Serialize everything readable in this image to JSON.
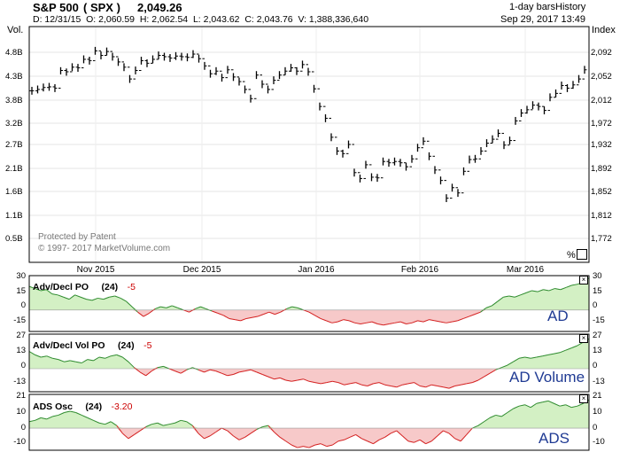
{
  "header": {
    "title": "S&P 500",
    "symbol": "( SPX )",
    "last": "2,049.26",
    "ohlcv": "D: 12/31/15  O: 2,060.59  H: 2,062.54  L: 2,043.62  C: 2,043.76  V: 1,388,336,640",
    "bars": "1-day bars",
    "history": "History",
    "datetime": "Sep 29, 2017 13:49",
    "vol_label": "Vol.",
    "index_label": "Index"
  },
  "watermark": {
    "line1": "Protected by Patent",
    "line2": "© 1997- 2017 MarketVolume.com"
  },
  "pct_label": "%",
  "chart_data": [
    {
      "type": "ohlc",
      "volume_ticks": [
        "4.8B",
        "4.3B",
        "3.8B",
        "3.2B",
        "2.7B",
        "2.1B",
        "1.6B",
        "1.1B",
        "0.5B"
      ],
      "price_ticks": [
        "2,092",
        "2,052",
        "2,012",
        "1,972",
        "1,932",
        "1,892",
        "1,852",
        "1,812",
        "1,772"
      ],
      "ylim": [
        1752,
        2112
      ],
      "x_labels": [
        "Nov 2015",
        "Dec 2015",
        "Jan 2016",
        "Feb 2016",
        "Mar 2016"
      ],
      "close": [
        2014,
        2016,
        2019,
        2020,
        2018,
        2045,
        2043,
        2050,
        2049,
        2062,
        2060,
        2075,
        2068,
        2074,
        2066,
        2058,
        2050,
        2032,
        2045,
        2060,
        2056,
        2062,
        2068,
        2066,
        2064,
        2067,
        2066,
        2065,
        2070,
        2063,
        2052,
        2040,
        2044,
        2034,
        2046,
        2035,
        2028,
        2016,
        2002,
        2038,
        2024,
        2016,
        2030,
        2038,
        2044,
        2049,
        2044,
        2054,
        2043,
        2017,
        1990,
        1972,
        1943,
        1922,
        1918,
        1932,
        1889,
        1880,
        1901,
        1882,
        1881,
        1906,
        1904,
        1906,
        1904,
        1898,
        1910,
        1927,
        1937,
        1914,
        1893,
        1877,
        1850,
        1866,
        1858,
        1891,
        1909,
        1910,
        1922,
        1934,
        1940,
        1949,
        1931,
        1938,
        1968,
        1980,
        1985,
        1992,
        1990,
        1984,
        2004,
        2010,
        2022,
        2018,
        2023,
        2032,
        2046
      ],
      "high": [
        2020,
        2022,
        2025,
        2026,
        2024,
        2050,
        2048,
        2056,
        2055,
        2068,
        2066,
        2081,
        2074,
        2080,
        2072,
        2064,
        2056,
        2038,
        2051,
        2066,
        2062,
        2068,
        2074,
        2072,
        2070,
        2073,
        2072,
        2071,
        2076,
        2069,
        2058,
        2046,
        2050,
        2040,
        2052,
        2041,
        2034,
        2022,
        2008,
        2044,
        2030,
        2022,
        2036,
        2044,
        2050,
        2055,
        2050,
        2060,
        2049,
        2023,
        1996,
        1978,
        1949,
        1928,
        1924,
        1938,
        1895,
        1886,
        1907,
        1888,
        1887,
        1912,
        1910,
        1912,
        1910,
        1904,
        1916,
        1933,
        1943,
        1920,
        1899,
        1883,
        1856,
        1872,
        1864,
        1897,
        1915,
        1916,
        1928,
        1940,
        1946,
        1955,
        1937,
        1944,
        1974,
        1986,
        1991,
        1998,
        1996,
        1990,
        2010,
        2016,
        2028,
        2024,
        2029,
        2038,
        2052
      ],
      "low": [
        2008,
        2010,
        2013,
        2014,
        2012,
        2039,
        2037,
        2044,
        2043,
        2056,
        2054,
        2069,
        2062,
        2068,
        2060,
        2052,
        2044,
        2026,
        2039,
        2054,
        2050,
        2056,
        2062,
        2060,
        2058,
        2061,
        2060,
        2059,
        2064,
        2057,
        2046,
        2034,
        2038,
        2028,
        2040,
        2029,
        2022,
        2010,
        1996,
        2032,
        2018,
        2010,
        2024,
        2032,
        2038,
        2043,
        2038,
        2048,
        2037,
        2011,
        1984,
        1966,
        1937,
        1916,
        1912,
        1926,
        1883,
        1874,
        1895,
        1876,
        1875,
        1900,
        1898,
        1900,
        1898,
        1892,
        1904,
        1921,
        1931,
        1908,
        1887,
        1871,
        1844,
        1860,
        1852,
        1885,
        1903,
        1904,
        1916,
        1928,
        1934,
        1943,
        1925,
        1932,
        1962,
        1974,
        1979,
        1986,
        1984,
        1978,
        1998,
        2004,
        2016,
        2012,
        2017,
        2026,
        2040
      ]
    },
    {
      "type": "area",
      "title": "Adv/Decl PO",
      "param": "(24)",
      "value": "-5",
      "overlay": "AD",
      "ticks": [
        "30",
        "15",
        "0",
        "-15"
      ],
      "ylim": [
        -20,
        32
      ],
      "values": [
        22,
        20,
        18,
        19,
        15,
        14,
        12,
        10,
        14,
        12,
        10,
        9,
        11,
        10,
        12,
        13,
        11,
        8,
        3,
        -2,
        -6,
        -3,
        1,
        3,
        2,
        4,
        2,
        0,
        -2,
        1,
        3,
        1,
        -1,
        -3,
        -5,
        -8,
        -9,
        -10,
        -8,
        -7,
        -6,
        -4,
        -2,
        -4,
        -2,
        1,
        3,
        2,
        0,
        -2,
        -5,
        -8,
        -10,
        -12,
        -11,
        -9,
        -10,
        -12,
        -13,
        -12,
        -11,
        -13,
        -14,
        -13,
        -12,
        -11,
        -13,
        -12,
        -10,
        -11,
        -9,
        -10,
        -11,
        -12,
        -11,
        -10,
        -8,
        -6,
        -4,
        -2,
        2,
        4,
        8,
        12,
        13,
        12,
        14,
        16,
        18,
        17,
        19,
        18,
        20,
        19,
        21,
        23,
        24,
        26,
        30
      ]
    },
    {
      "type": "area",
      "title": "Adv/Decl Vol PO",
      "param": "(24)",
      "value": "-5",
      "overlay": "AD Volume",
      "ticks": [
        "27",
        "13",
        "0",
        "-13"
      ],
      "ylim": [
        -20,
        30
      ],
      "values": [
        15,
        12,
        10,
        11,
        9,
        8,
        6,
        7,
        6,
        5,
        8,
        7,
        10,
        9,
        11,
        12,
        10,
        6,
        1,
        -3,
        -6,
        -2,
        1,
        2,
        0,
        -2,
        -4,
        -1,
        1,
        -1,
        -3,
        -1,
        -2,
        -4,
        -6,
        -5,
        -3,
        -2,
        -1,
        -3,
        -5,
        -7,
        -9,
        -8,
        -10,
        -11,
        -10,
        -9,
        -11,
        -12,
        -13,
        -12,
        -11,
        -12,
        -14,
        -13,
        -12,
        -14,
        -15,
        -13,
        -12,
        -14,
        -15,
        -16,
        -14,
        -13,
        -12,
        -15,
        -16,
        -14,
        -15,
        -16,
        -17,
        -15,
        -14,
        -13,
        -12,
        -10,
        -7,
        -4,
        -1,
        1,
        3,
        6,
        9,
        10,
        9,
        10,
        11,
        12,
        13,
        14,
        16,
        18,
        20,
        23,
        26
      ]
    },
    {
      "type": "area",
      "title": "ADS Osc",
      "param": "(24)",
      "value": "-3.20",
      "overlay": "ADS",
      "ticks": [
        "21",
        "10",
        "0",
        "-10"
      ],
      "ylim": [
        -17,
        26
      ],
      "values": [
        5,
        6,
        8,
        7,
        9,
        10,
        12,
        13,
        12,
        10,
        8,
        6,
        4,
        3,
        5,
        2,
        -4,
        -8,
        -5,
        -2,
        1,
        3,
        4,
        2,
        3,
        4,
        6,
        5,
        2,
        -4,
        -8,
        -6,
        -3,
        0,
        -2,
        -6,
        -9,
        -7,
        -4,
        -1,
        1,
        2,
        -3,
        -7,
        -10,
        -13,
        -15,
        -14,
        -15,
        -13,
        -12,
        -14,
        -13,
        -10,
        -9,
        -7,
        -5,
        -8,
        -10,
        -12,
        -9,
        -7,
        -4,
        -2,
        -6,
        -10,
        -11,
        -9,
        -12,
        -10,
        -6,
        -2,
        -4,
        -8,
        -10,
        -5,
        0,
        2,
        5,
        8,
        10,
        9,
        12,
        15,
        17,
        18,
        16,
        19,
        20,
        21,
        19,
        17,
        18,
        16,
        17,
        19,
        22
      ]
    }
  ]
}
